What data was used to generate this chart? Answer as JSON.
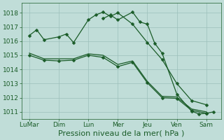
{
  "background_color": "#c0ddd8",
  "grid_color": "#9cbfba",
  "line_color": "#1a5c28",
  "xlabel": "Pression niveau de la mer( hPa )",
  "ylim": [
    1010.5,
    1018.7
  ],
  "yticks": [
    1011,
    1012,
    1013,
    1014,
    1015,
    1016,
    1017,
    1018
  ],
  "xtick_labels": [
    "Lu​Mar",
    "Dim",
    "Lun",
    "Mer",
    "Jeu",
    "Ven",
    "Sam"
  ],
  "xtick_pos": [
    0,
    2,
    4,
    6,
    8,
    10,
    12
  ],
  "xlim": [
    -0.5,
    13.0
  ],
  "line1_x": [
    0,
    0.5,
    1,
    2,
    2.5,
    3,
    4,
    4.5,
    5,
    5.5,
    6,
    7,
    8,
    9,
    10,
    11,
    12
  ],
  "line1_y": [
    1016.4,
    1016.8,
    1016.1,
    1016.3,
    1016.5,
    1015.9,
    1017.5,
    1017.85,
    1018.05,
    1017.75,
    1018.0,
    1017.2,
    1015.9,
    1014.7,
    1013.0,
    1011.8,
    1011.5
  ],
  "line2_x": [
    0,
    1,
    2,
    3,
    4,
    5,
    6,
    7,
    8,
    9,
    10,
    11,
    12
  ],
  "line2_y": [
    1015.0,
    1014.65,
    1014.6,
    1014.65,
    1015.0,
    1014.85,
    1014.2,
    1014.5,
    1013.05,
    1012.0,
    1011.95,
    1011.1,
    1010.9
  ],
  "line3_x": [
    0,
    1,
    2,
    3,
    4,
    5,
    6,
    7,
    8,
    9,
    10,
    11,
    12
  ],
  "line3_y": [
    1015.15,
    1014.75,
    1014.75,
    1014.75,
    1015.1,
    1015.0,
    1014.35,
    1014.6,
    1013.15,
    1012.1,
    1012.05,
    1011.2,
    1011.0
  ],
  "line4_x": [
    5,
    5.5,
    6,
    7,
    7.5,
    8,
    8.5,
    9,
    10,
    11,
    11.5,
    12,
    12.5
  ],
  "line4_y": [
    1017.6,
    1017.85,
    1017.5,
    1018.05,
    1017.35,
    1017.2,
    1015.85,
    1015.15,
    1012.25,
    1011.05,
    1010.85,
    1010.9,
    1011.0
  ],
  "marker_size": 2.5,
  "line_width": 0.9,
  "xlabel_fontsize": 8,
  "tick_fontsize": 6.5
}
